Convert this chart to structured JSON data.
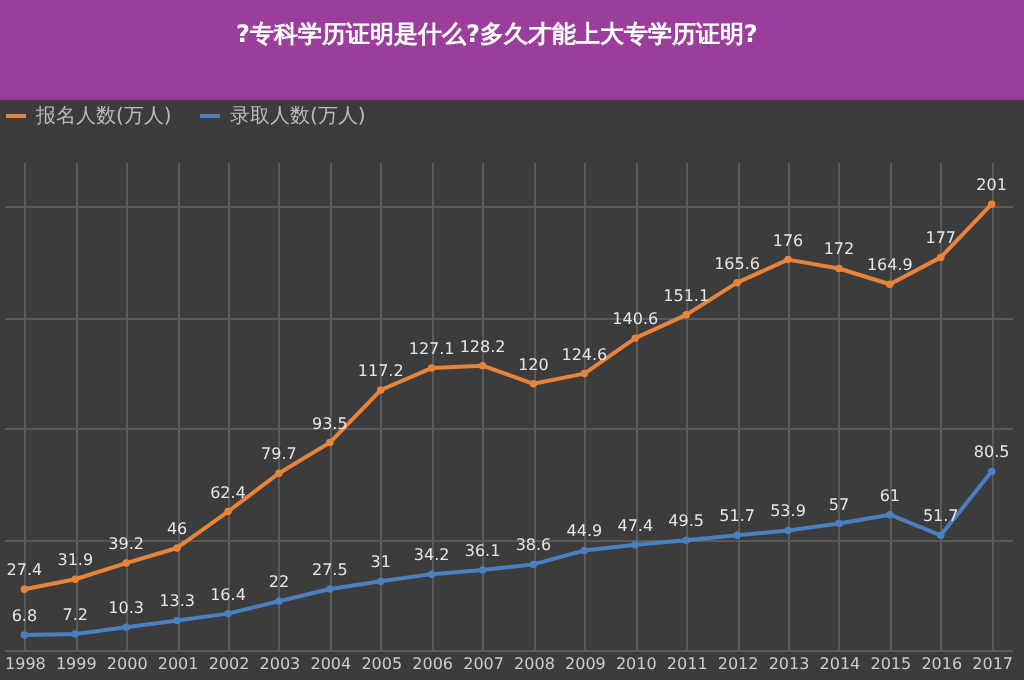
{
  "chart_data": {
    "type": "line",
    "title": "?专科学历证明是什么?多久才能上大专学历证明?",
    "categories": [
      "1998",
      "1999",
      "2000",
      "2001",
      "2002",
      "2003",
      "2004",
      "2005",
      "2006",
      "2007",
      "2008",
      "2009",
      "2010",
      "2011",
      "2012",
      "2013",
      "2014",
      "2015",
      "2016",
      "2017"
    ],
    "series": [
      {
        "name": "报名人数(万人)",
        "color": "#e8843a",
        "values": [
          27.4,
          31.9,
          39.2,
          46,
          62.4,
          79.7,
          93.5,
          117.2,
          127.1,
          128.2,
          120,
          124.6,
          140.6,
          151.1,
          165.6,
          176,
          172,
          164.9,
          177,
          201
        ]
      },
      {
        "name": "录取人数(万人)",
        "color": "#4a7fc0",
        "values": [
          6.8,
          7.2,
          10.3,
          13.3,
          16.4,
          22,
          27.5,
          31,
          34.2,
          36.1,
          38.6,
          44.9,
          47.4,
          49.5,
          51.7,
          53.9,
          57,
          61,
          51.7,
          80.5
        ]
      }
    ],
    "data_labels": true,
    "grid": true,
    "legend": "top",
    "marker": "circle"
  }
}
